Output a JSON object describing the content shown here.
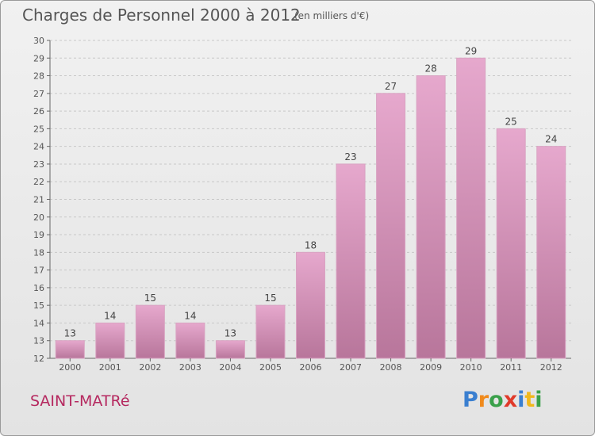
{
  "header": {
    "title": "Charges de Personnel 2000 à 2012",
    "subtitle": "(en milliers d'€)"
  },
  "commune": "SAINT-MATRé",
  "logo": {
    "text": "Proxiti",
    "letters": [
      {
        "char": "P",
        "color": "#3a7fd0"
      },
      {
        "char": "r",
        "color": "#f08a1c"
      },
      {
        "char": "o",
        "color": "#3aa04a"
      },
      {
        "char": "x",
        "color": "#e03a2a"
      },
      {
        "char": "i",
        "color": "#3a7fd0"
      },
      {
        "char": "t",
        "color": "#f0b81c"
      },
      {
        "char": "i",
        "color": "#3aa04a"
      }
    ]
  },
  "colors": {
    "bar_top": "#e6a8cd",
    "bar_bottom": "#b8769b",
    "grid": "#c8c8c8",
    "text": "#555555",
    "commune": "#b5285f"
  },
  "chart_data": {
    "type": "bar",
    "categories": [
      "2000",
      "2001",
      "2002",
      "2003",
      "2004",
      "2005",
      "2006",
      "2007",
      "2008",
      "2009",
      "2010",
      "2011",
      "2012"
    ],
    "values": [
      13,
      14,
      15,
      14,
      13,
      15,
      18,
      23,
      27,
      28,
      29,
      25,
      24
    ],
    "ylim": [
      12,
      30
    ],
    "yticks": [
      12,
      13,
      14,
      15,
      16,
      17,
      18,
      19,
      20,
      21,
      22,
      23,
      24,
      25,
      26,
      27,
      28,
      29,
      30
    ],
    "grid": true
  }
}
